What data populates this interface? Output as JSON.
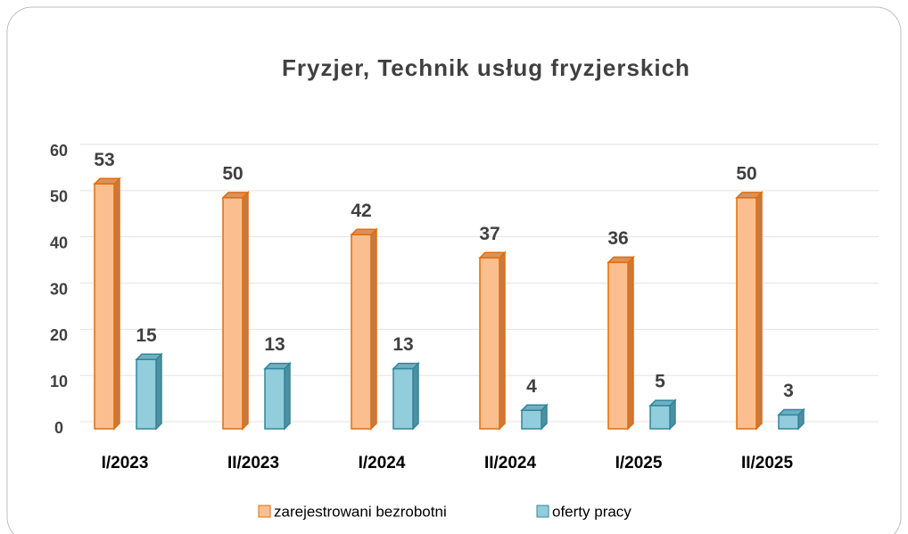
{
  "chart_data": {
    "type": "bar3d",
    "title": "Fryzjer, Technik usług fryzjerskich",
    "categories": [
      "I/2023",
      "II/2023",
      "I/2024",
      "II/2024",
      "I/2025",
      "II/2025"
    ],
    "series": [
      {
        "name": "zarejestrowani bezrobotni",
        "color": "#fbbf8f",
        "values": [
          53,
          50,
          42,
          37,
          36,
          50
        ]
      },
      {
        "name": "oferty pracy",
        "color": "#92cddc",
        "values": [
          15,
          13,
          13,
          4,
          5,
          3
        ]
      }
    ],
    "ylim": [
      0,
      60
    ],
    "yticks": [
      0,
      10,
      20,
      30,
      40,
      50,
      60
    ],
    "grid": true,
    "legend": "bottom"
  }
}
